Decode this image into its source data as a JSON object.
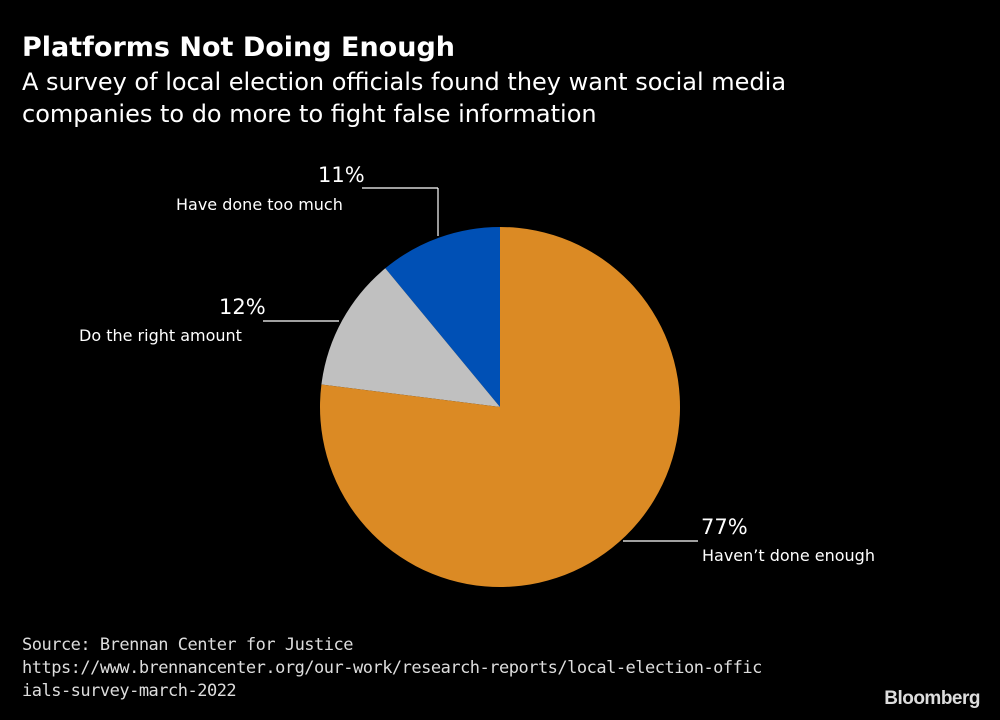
{
  "chart_data": {
    "type": "pie",
    "title": "Platforms Not Doing Enough",
    "subtitle": "A survey of local election officials found they want social media companies to do more to fight false information",
    "slices": [
      {
        "label": "Haven’t done enough",
        "value": 77,
        "value_label": "77%",
        "color": "#db8a24"
      },
      {
        "label": "Do the right amount",
        "value": 12,
        "value_label": "12%",
        "color": "#c0c0c0"
      },
      {
        "label": "Have done too much",
        "value": 11,
        "value_label": "11%",
        "color": "#0050b5"
      }
    ],
    "start": "top, clockwise",
    "source": "Source: Brennan Center for Justice",
    "source_url": "https://www.brennancenter.org/our-work/research-reports/local-election-officials-survey-march-2022"
  },
  "brand": "Bloomberg"
}
